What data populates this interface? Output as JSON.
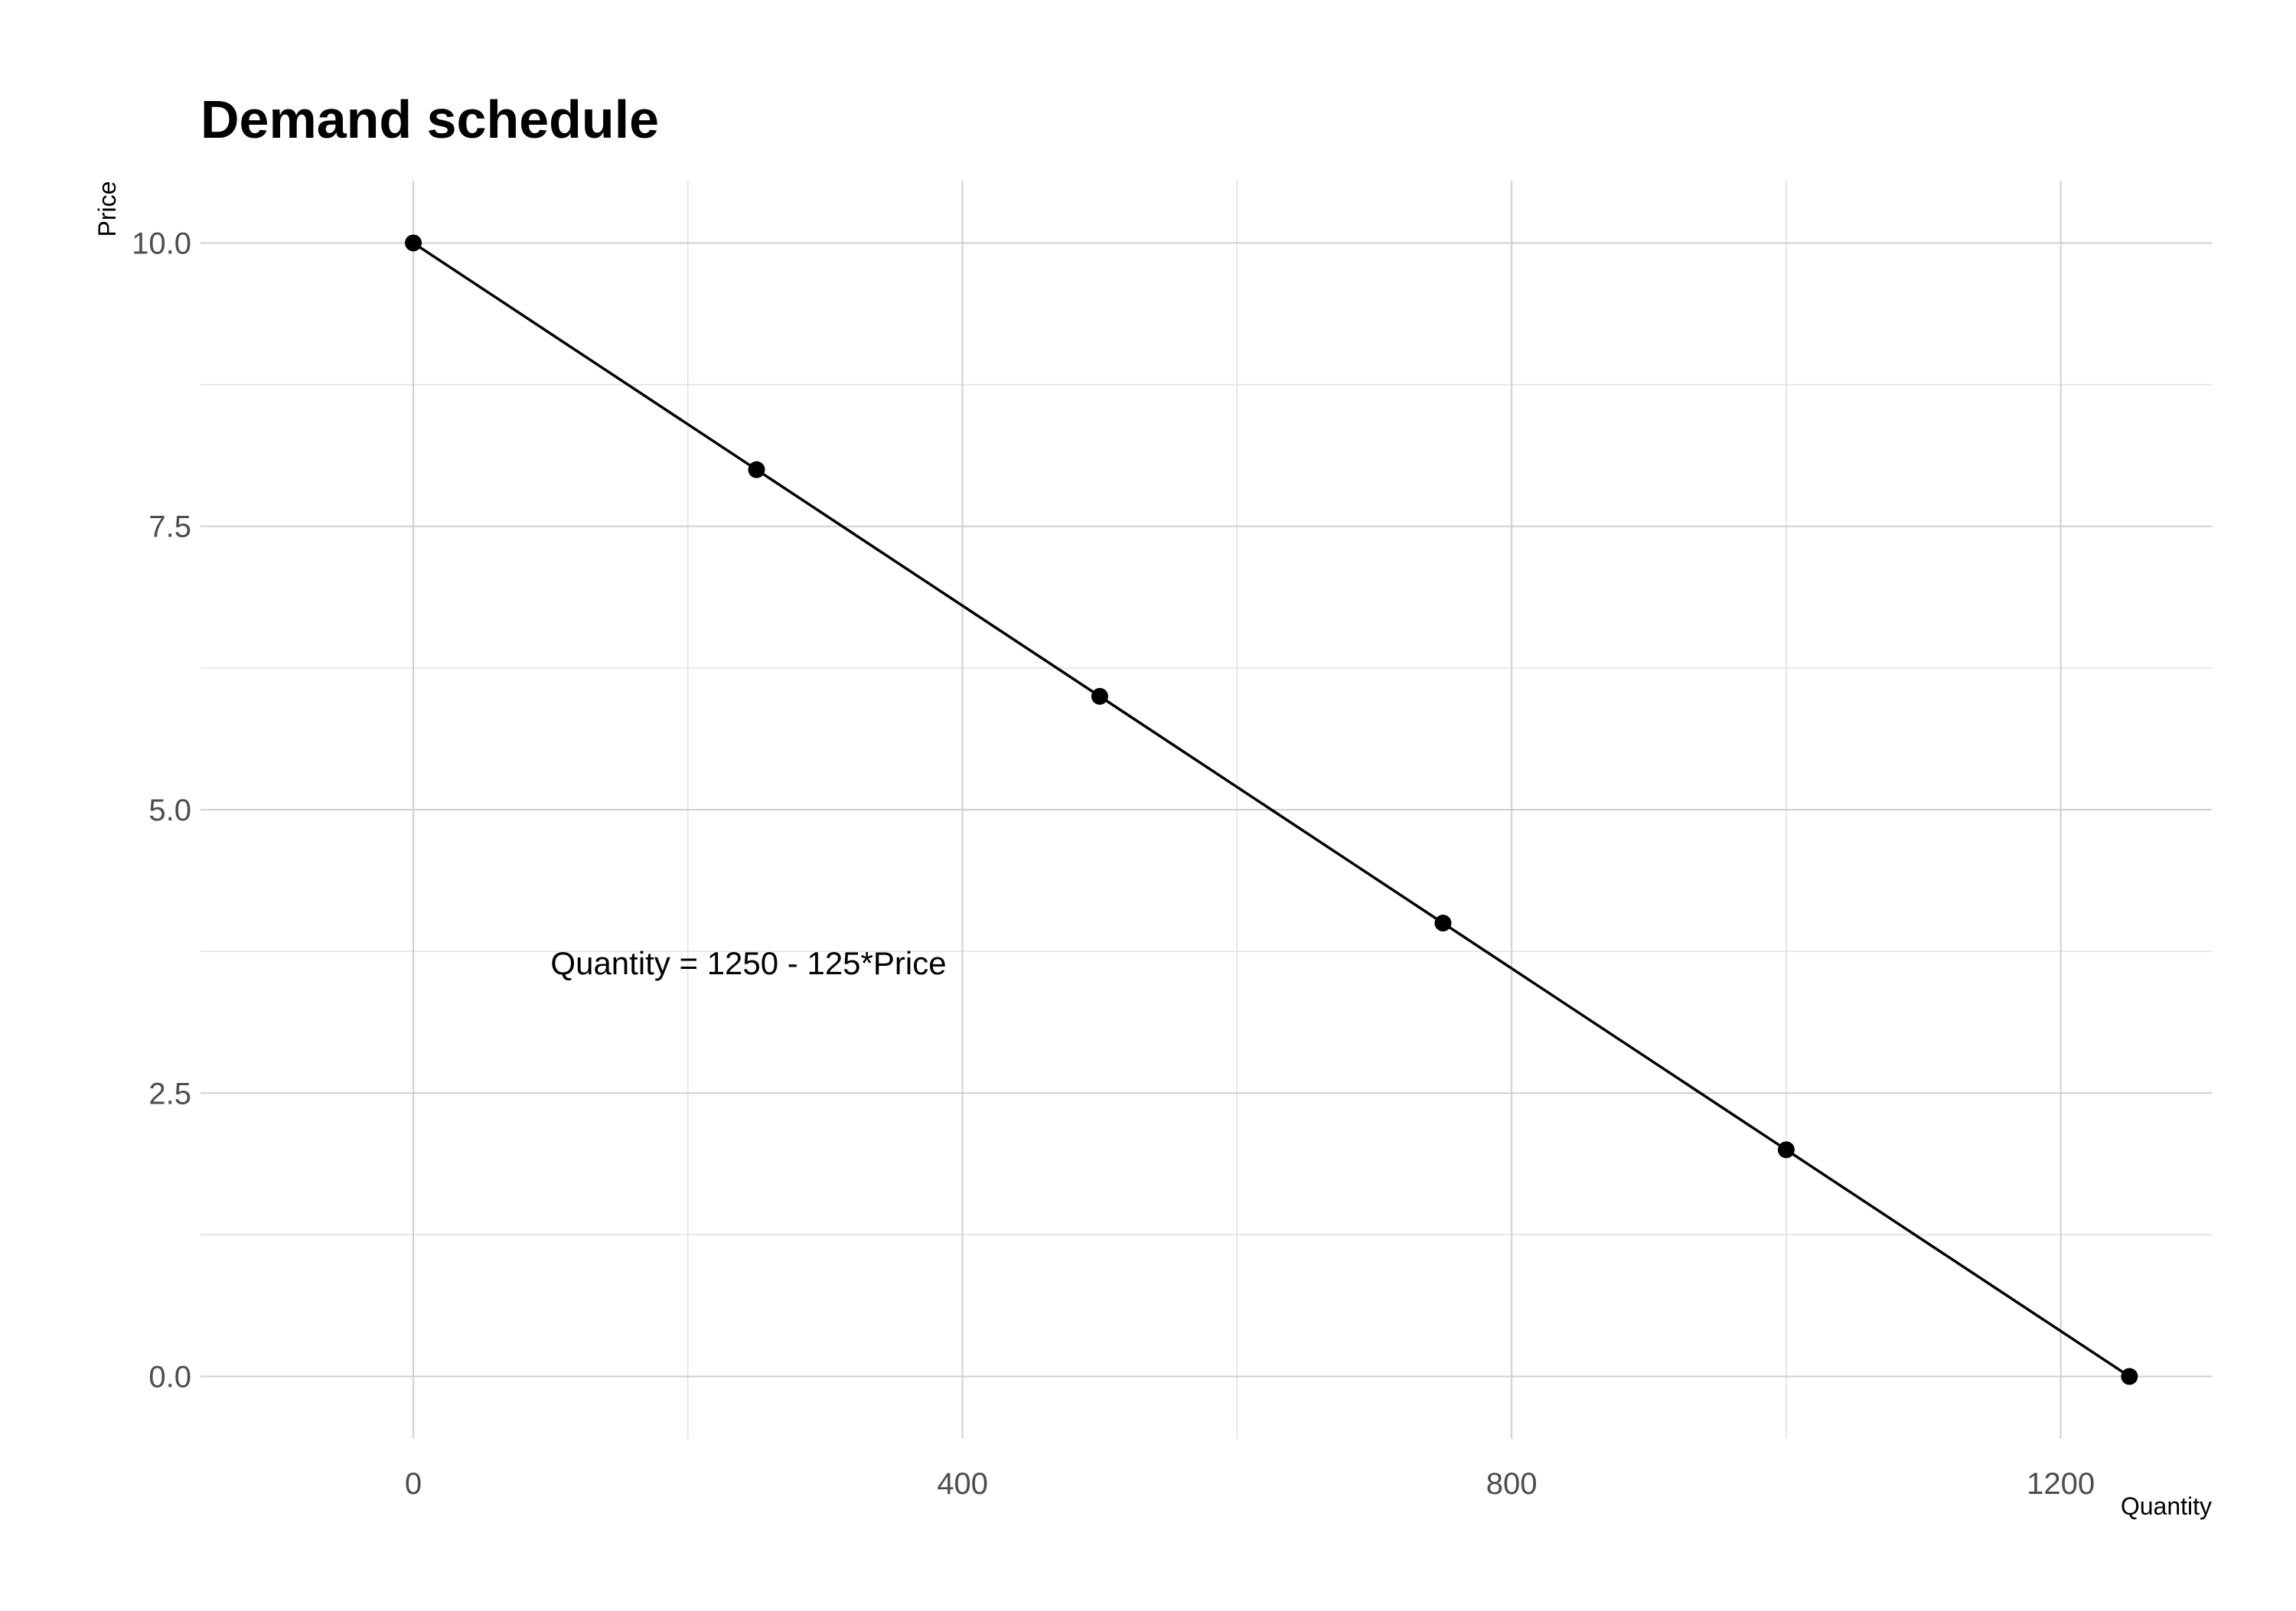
{
  "chart_data": {
    "type": "line",
    "title": "Demand schedule",
    "xlabel": "Quantity",
    "ylabel": "Price",
    "xlim": [
      -155,
      1310
    ],
    "ylim": [
      -0.55,
      10.55
    ],
    "x_ticks": [
      0,
      400,
      800,
      1200
    ],
    "y_ticks": [
      0.0,
      2.5,
      5.0,
      7.5,
      10.0
    ],
    "x_tick_labels": [
      "0",
      "400",
      "800",
      "1200"
    ],
    "y_tick_labels": [
      "0.0",
      "2.5",
      "5.0",
      "7.5",
      "10.0"
    ],
    "grid": true,
    "legend": "none",
    "series": [
      {
        "x": [
          0,
          250,
          500,
          750,
          1000,
          1250
        ],
        "y": [
          10,
          8,
          6,
          4,
          2,
          0
        ],
        "color": "#000000"
      }
    ],
    "annotations": [
      {
        "text": "Quantity = 1250 - 125*Price",
        "x": 100,
        "y": 3.65
      }
    ]
  }
}
